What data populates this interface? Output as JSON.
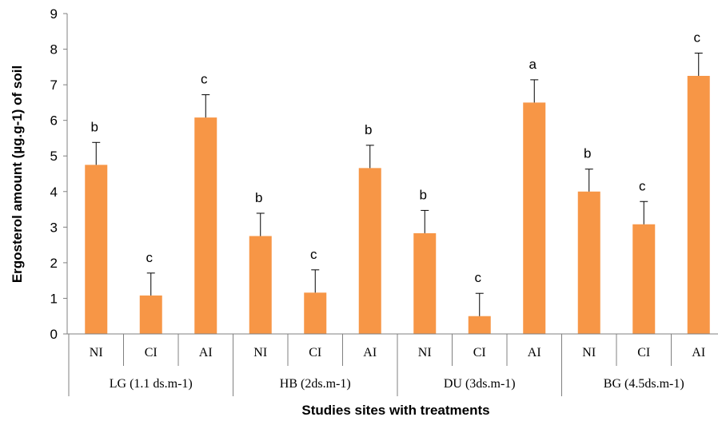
{
  "chart_data": {
    "type": "bar",
    "title": "",
    "xlabel": "Studies sites with treatments",
    "ylabel": "Ergosterol amount (µg.g-1) of soil",
    "ylim": [
      0,
      9
    ],
    "yticks": [
      "0",
      "1",
      "2",
      "3",
      "4",
      "5",
      "6",
      "7",
      "8",
      "9"
    ],
    "grid": false,
    "legend": "none",
    "bar_color": "#F79646",
    "groups": [
      {
        "label": "LG (1.1 ds.m-1)",
        "categories": [
          "NI",
          "CI",
          "AI"
        ],
        "values": [
          4.75,
          1.08,
          6.08
        ],
        "errors": [
          0.63,
          0.63,
          0.64
        ],
        "letters": [
          "b",
          "c",
          "c"
        ]
      },
      {
        "label": "HB (2ds.m-1)",
        "categories": [
          "NI",
          "CI",
          "AI"
        ],
        "values": [
          2.75,
          1.16,
          4.66
        ],
        "errors": [
          0.64,
          0.64,
          0.64
        ],
        "letters": [
          "b",
          "c",
          "b"
        ]
      },
      {
        "label": "DU (3ds.m-1)",
        "categories": [
          "NI",
          "CI",
          "AI"
        ],
        "values": [
          2.83,
          0.5,
          6.5
        ],
        "errors": [
          0.64,
          0.64,
          0.64
        ],
        "letters": [
          "b",
          "c",
          "a"
        ]
      },
      {
        "label": "BG (4.5ds.m-1)",
        "categories": [
          "NI",
          "CI",
          "AI"
        ],
        "values": [
          4.0,
          3.08,
          7.25
        ],
        "errors": [
          0.63,
          0.64,
          0.64
        ],
        "letters": [
          "b",
          "c",
          "c"
        ]
      }
    ]
  }
}
